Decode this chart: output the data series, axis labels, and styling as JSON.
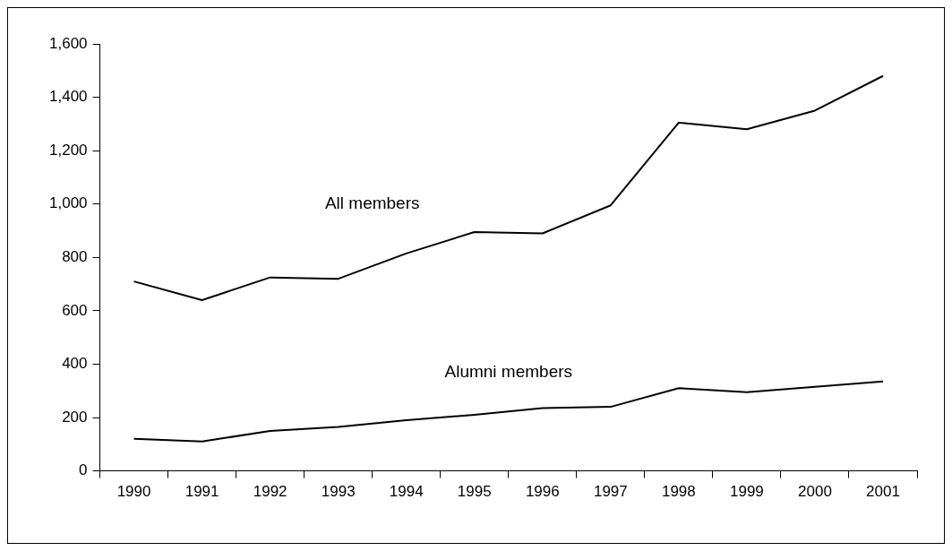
{
  "chart_data": {
    "type": "line",
    "categories": [
      "1990",
      "1991",
      "1992",
      "1993",
      "1994",
      "1995",
      "1996",
      "1997",
      "1998",
      "1999",
      "2000",
      "2001"
    ],
    "series": [
      {
        "name": "All members",
        "color": "#000000",
        "values": [
          710,
          640,
          725,
          720,
          815,
          895,
          890,
          995,
          1305,
          1280,
          1350,
          1480
        ]
      },
      {
        "name": "Alumni members",
        "color": "#000000",
        "values": [
          120,
          110,
          150,
          165,
          190,
          210,
          235,
          240,
          310,
          295,
          315,
          335
        ]
      }
    ],
    "ylim": [
      0,
      1600
    ],
    "yticks": [
      0,
      200,
      400,
      600,
      800,
      {
        "value": 1000,
        "label": "1,000"
      },
      {
        "value": 1200,
        "label": "1,200"
      },
      {
        "value": 1400,
        "label": "1,400"
      },
      {
        "value": 1600,
        "label": "1,600"
      }
    ],
    "grid": false,
    "legend": false,
    "marker": "none",
    "line_style": "solid"
  }
}
